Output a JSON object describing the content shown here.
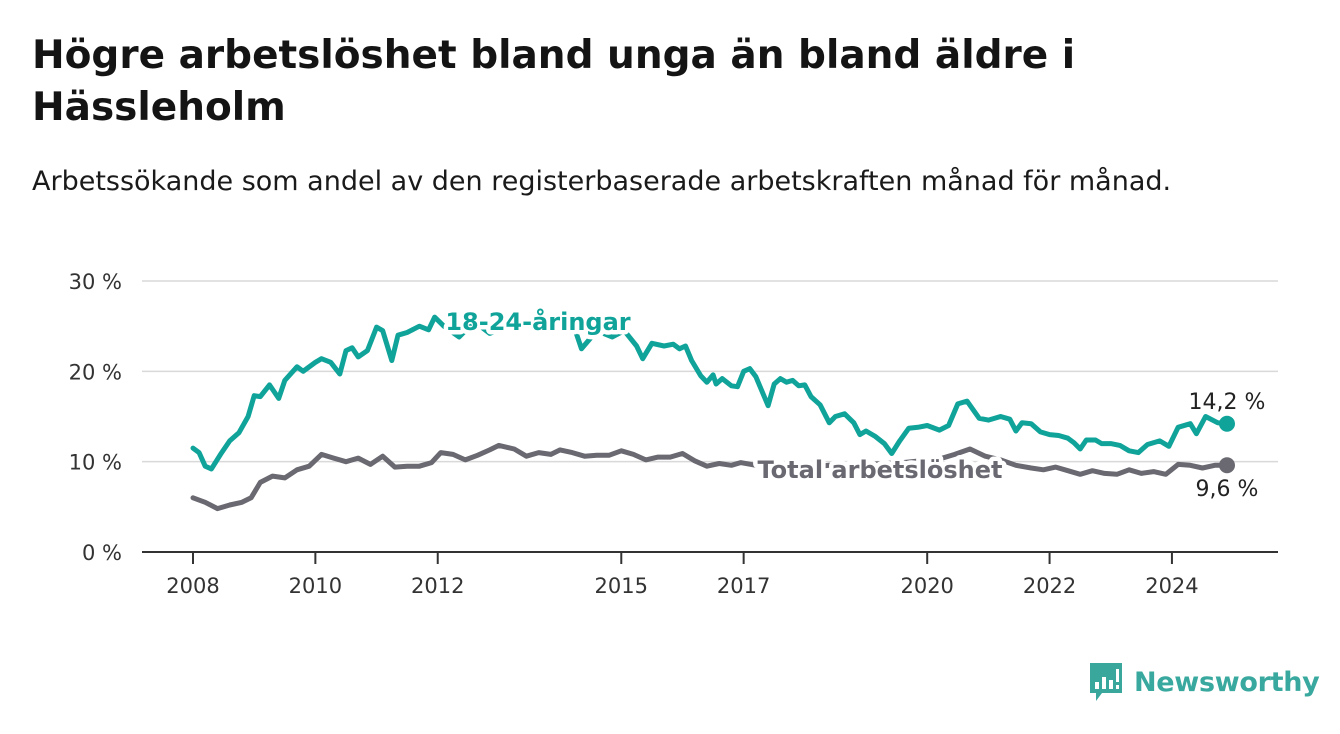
{
  "title": "Högre arbetslöshet bland unga än bland äldre i Hässleholm",
  "subtitle": "Arbetssökande som andel av den registerbaserade arbetskraften månad för månad.",
  "brand": {
    "name": "Newsworthy",
    "icon": "newsworthy-chart-icon",
    "color": "#3aa79c"
  },
  "chart_data": {
    "type": "line",
    "ylim": [
      0,
      30
    ],
    "yticks": [
      0,
      10,
      20,
      30
    ],
    "ytick_labels": [
      "0 %",
      "10 %",
      "20 %",
      "30 %"
    ],
    "xlim": [
      2008.0,
      2025.8
    ],
    "xticks": [
      2008,
      2010,
      2012,
      2015,
      2017,
      2020,
      2022,
      2024
    ],
    "xtick_labels": [
      "2008",
      "2010",
      "2012",
      "2015",
      "2017",
      "2020",
      "2022",
      "2024"
    ],
    "grid": "horizontal",
    "series": [
      {
        "name": "18-24-åringar",
        "color": "#0fa39a",
        "end_label": "14,2 %",
        "points": [
          [
            2008.0,
            11.5
          ],
          [
            2008.1,
            11.0
          ],
          [
            2008.2,
            9.5
          ],
          [
            2008.3,
            9.2
          ],
          [
            2008.45,
            10.8
          ],
          [
            2008.6,
            12.3
          ],
          [
            2008.75,
            13.2
          ],
          [
            2008.9,
            15.0
          ],
          [
            2009.0,
            17.3
          ],
          [
            2009.1,
            17.2
          ],
          [
            2009.25,
            18.5
          ],
          [
            2009.4,
            17.0
          ],
          [
            2009.5,
            19.0
          ],
          [
            2009.7,
            20.5
          ],
          [
            2009.8,
            20.0
          ],
          [
            2010.0,
            21.0
          ],
          [
            2010.1,
            21.4
          ],
          [
            2010.25,
            21.0
          ],
          [
            2010.4,
            19.7
          ],
          [
            2010.5,
            22.3
          ],
          [
            2010.6,
            22.6
          ],
          [
            2010.7,
            21.6
          ],
          [
            2010.85,
            22.3
          ],
          [
            2011.0,
            24.9
          ],
          [
            2011.1,
            24.5
          ],
          [
            2011.25,
            21.2
          ],
          [
            2011.35,
            24.0
          ],
          [
            2011.5,
            24.3
          ],
          [
            2011.7,
            25.0
          ],
          [
            2011.85,
            24.6
          ],
          [
            2011.95,
            26.0
          ],
          [
            2012.1,
            25.0
          ],
          [
            2012.35,
            23.8
          ],
          [
            2012.6,
            25.5
          ],
          [
            2012.85,
            24.2
          ],
          [
            2013.3,
            25.3
          ],
          [
            2013.8,
            24.8
          ],
          [
            2014.2,
            25.5
          ],
          [
            2014.35,
            22.5
          ],
          [
            2014.6,
            24.5
          ],
          [
            2014.85,
            23.8
          ],
          [
            2015.05,
            24.5
          ],
          [
            2015.25,
            22.8
          ],
          [
            2015.35,
            21.4
          ],
          [
            2015.5,
            23.1
          ],
          [
            2015.7,
            22.8
          ],
          [
            2015.85,
            23.0
          ],
          [
            2015.95,
            22.5
          ],
          [
            2016.05,
            22.8
          ],
          [
            2016.15,
            21.2
          ],
          [
            2016.3,
            19.5
          ],
          [
            2016.4,
            18.8
          ],
          [
            2016.5,
            19.6
          ],
          [
            2016.55,
            18.6
          ],
          [
            2016.65,
            19.2
          ],
          [
            2016.8,
            18.4
          ],
          [
            2016.9,
            18.3
          ],
          [
            2017.0,
            20.0
          ],
          [
            2017.1,
            20.3
          ],
          [
            2017.2,
            19.4
          ],
          [
            2017.4,
            16.2
          ],
          [
            2017.5,
            18.6
          ],
          [
            2017.6,
            19.2
          ],
          [
            2017.7,
            18.8
          ],
          [
            2017.8,
            19.0
          ],
          [
            2017.9,
            18.4
          ],
          [
            2018.0,
            18.5
          ],
          [
            2018.1,
            17.2
          ],
          [
            2018.25,
            16.3
          ],
          [
            2018.4,
            14.3
          ],
          [
            2018.5,
            15.0
          ],
          [
            2018.65,
            15.3
          ],
          [
            2018.8,
            14.3
          ],
          [
            2018.9,
            13.0
          ],
          [
            2019.0,
            13.4
          ],
          [
            2019.15,
            12.8
          ],
          [
            2019.3,
            12.0
          ],
          [
            2019.42,
            10.9
          ],
          [
            2019.55,
            12.3
          ],
          [
            2019.7,
            13.7
          ],
          [
            2019.85,
            13.8
          ],
          [
            2020.0,
            14.0
          ],
          [
            2020.2,
            13.5
          ],
          [
            2020.35,
            14.0
          ],
          [
            2020.5,
            16.4
          ],
          [
            2020.65,
            16.7
          ],
          [
            2020.85,
            14.8
          ],
          [
            2021.0,
            14.6
          ],
          [
            2021.2,
            15.0
          ],
          [
            2021.35,
            14.7
          ],
          [
            2021.45,
            13.4
          ],
          [
            2021.55,
            14.3
          ],
          [
            2021.7,
            14.2
          ],
          [
            2021.85,
            13.3
          ],
          [
            2022.0,
            13.0
          ],
          [
            2022.15,
            12.9
          ],
          [
            2022.3,
            12.6
          ],
          [
            2022.4,
            12.1
          ],
          [
            2022.5,
            11.4
          ],
          [
            2022.6,
            12.4
          ],
          [
            2022.75,
            12.4
          ],
          [
            2022.85,
            12.0
          ],
          [
            2023.0,
            12.0
          ],
          [
            2023.15,
            11.8
          ],
          [
            2023.3,
            11.2
          ],
          [
            2023.45,
            11.0
          ],
          [
            2023.6,
            11.9
          ],
          [
            2023.8,
            12.3
          ],
          [
            2023.95,
            11.7
          ],
          [
            2024.1,
            13.8
          ],
          [
            2024.3,
            14.2
          ],
          [
            2024.4,
            13.1
          ],
          [
            2024.55,
            15.0
          ],
          [
            2024.75,
            14.3
          ],
          [
            2024.9,
            14.2
          ]
        ]
      },
      {
        "name": "Total arbetslöshet",
        "color": "#6a6870",
        "end_label": "9,6 %",
        "points": [
          [
            2008.0,
            6.0
          ],
          [
            2008.2,
            5.5
          ],
          [
            2008.4,
            4.8
          ],
          [
            2008.6,
            5.2
          ],
          [
            2008.8,
            5.5
          ],
          [
            2008.95,
            6.0
          ],
          [
            2009.1,
            7.7
          ],
          [
            2009.3,
            8.4
          ],
          [
            2009.5,
            8.2
          ],
          [
            2009.7,
            9.1
          ],
          [
            2009.9,
            9.5
          ],
          [
            2010.1,
            10.8
          ],
          [
            2010.3,
            10.4
          ],
          [
            2010.5,
            10.0
          ],
          [
            2010.7,
            10.4
          ],
          [
            2010.9,
            9.7
          ],
          [
            2011.1,
            10.6
          ],
          [
            2011.3,
            9.4
          ],
          [
            2011.5,
            9.5
          ],
          [
            2011.7,
            9.5
          ],
          [
            2011.9,
            9.9
          ],
          [
            2012.05,
            11.0
          ],
          [
            2012.25,
            10.8
          ],
          [
            2012.45,
            10.2
          ],
          [
            2012.65,
            10.7
          ],
          [
            2012.85,
            11.3
          ],
          [
            2013.0,
            11.8
          ],
          [
            2013.25,
            11.4
          ],
          [
            2013.45,
            10.6
          ],
          [
            2013.65,
            11.0
          ],
          [
            2013.85,
            10.8
          ],
          [
            2014.0,
            11.3
          ],
          [
            2014.2,
            11.0
          ],
          [
            2014.4,
            10.6
          ],
          [
            2014.6,
            10.7
          ],
          [
            2014.8,
            10.7
          ],
          [
            2015.0,
            11.2
          ],
          [
            2015.2,
            10.8
          ],
          [
            2015.4,
            10.2
          ],
          [
            2015.6,
            10.5
          ],
          [
            2015.8,
            10.5
          ],
          [
            2016.0,
            10.9
          ],
          [
            2016.2,
            10.1
          ],
          [
            2016.4,
            9.5
          ],
          [
            2016.6,
            9.8
          ],
          [
            2016.8,
            9.6
          ],
          [
            2016.95,
            9.9
          ],
          [
            2017.2,
            9.6
          ],
          [
            2017.5,
            9.4
          ],
          [
            2017.8,
            9.5
          ],
          [
            2018.1,
            9.4
          ],
          [
            2018.4,
            9.6
          ],
          [
            2018.7,
            9.5
          ],
          [
            2019.0,
            9.7
          ],
          [
            2019.3,
            9.8
          ],
          [
            2019.6,
            9.9
          ],
          [
            2019.9,
            10.1
          ],
          [
            2020.2,
            10.3
          ],
          [
            2020.45,
            10.8
          ],
          [
            2020.7,
            11.4
          ],
          [
            2020.95,
            10.6
          ],
          [
            2021.2,
            10.2
          ],
          [
            2021.45,
            9.6
          ],
          [
            2021.7,
            9.3
          ],
          [
            2021.9,
            9.1
          ],
          [
            2022.1,
            9.4
          ],
          [
            2022.3,
            9.0
          ],
          [
            2022.5,
            8.6
          ],
          [
            2022.7,
            9.0
          ],
          [
            2022.9,
            8.7
          ],
          [
            2023.1,
            8.6
          ],
          [
            2023.3,
            9.1
          ],
          [
            2023.5,
            8.7
          ],
          [
            2023.7,
            8.9
          ],
          [
            2023.9,
            8.6
          ],
          [
            2024.1,
            9.7
          ],
          [
            2024.3,
            9.6
          ],
          [
            2024.5,
            9.3
          ],
          [
            2024.7,
            9.6
          ],
          [
            2024.9,
            9.6
          ]
        ]
      }
    ]
  }
}
